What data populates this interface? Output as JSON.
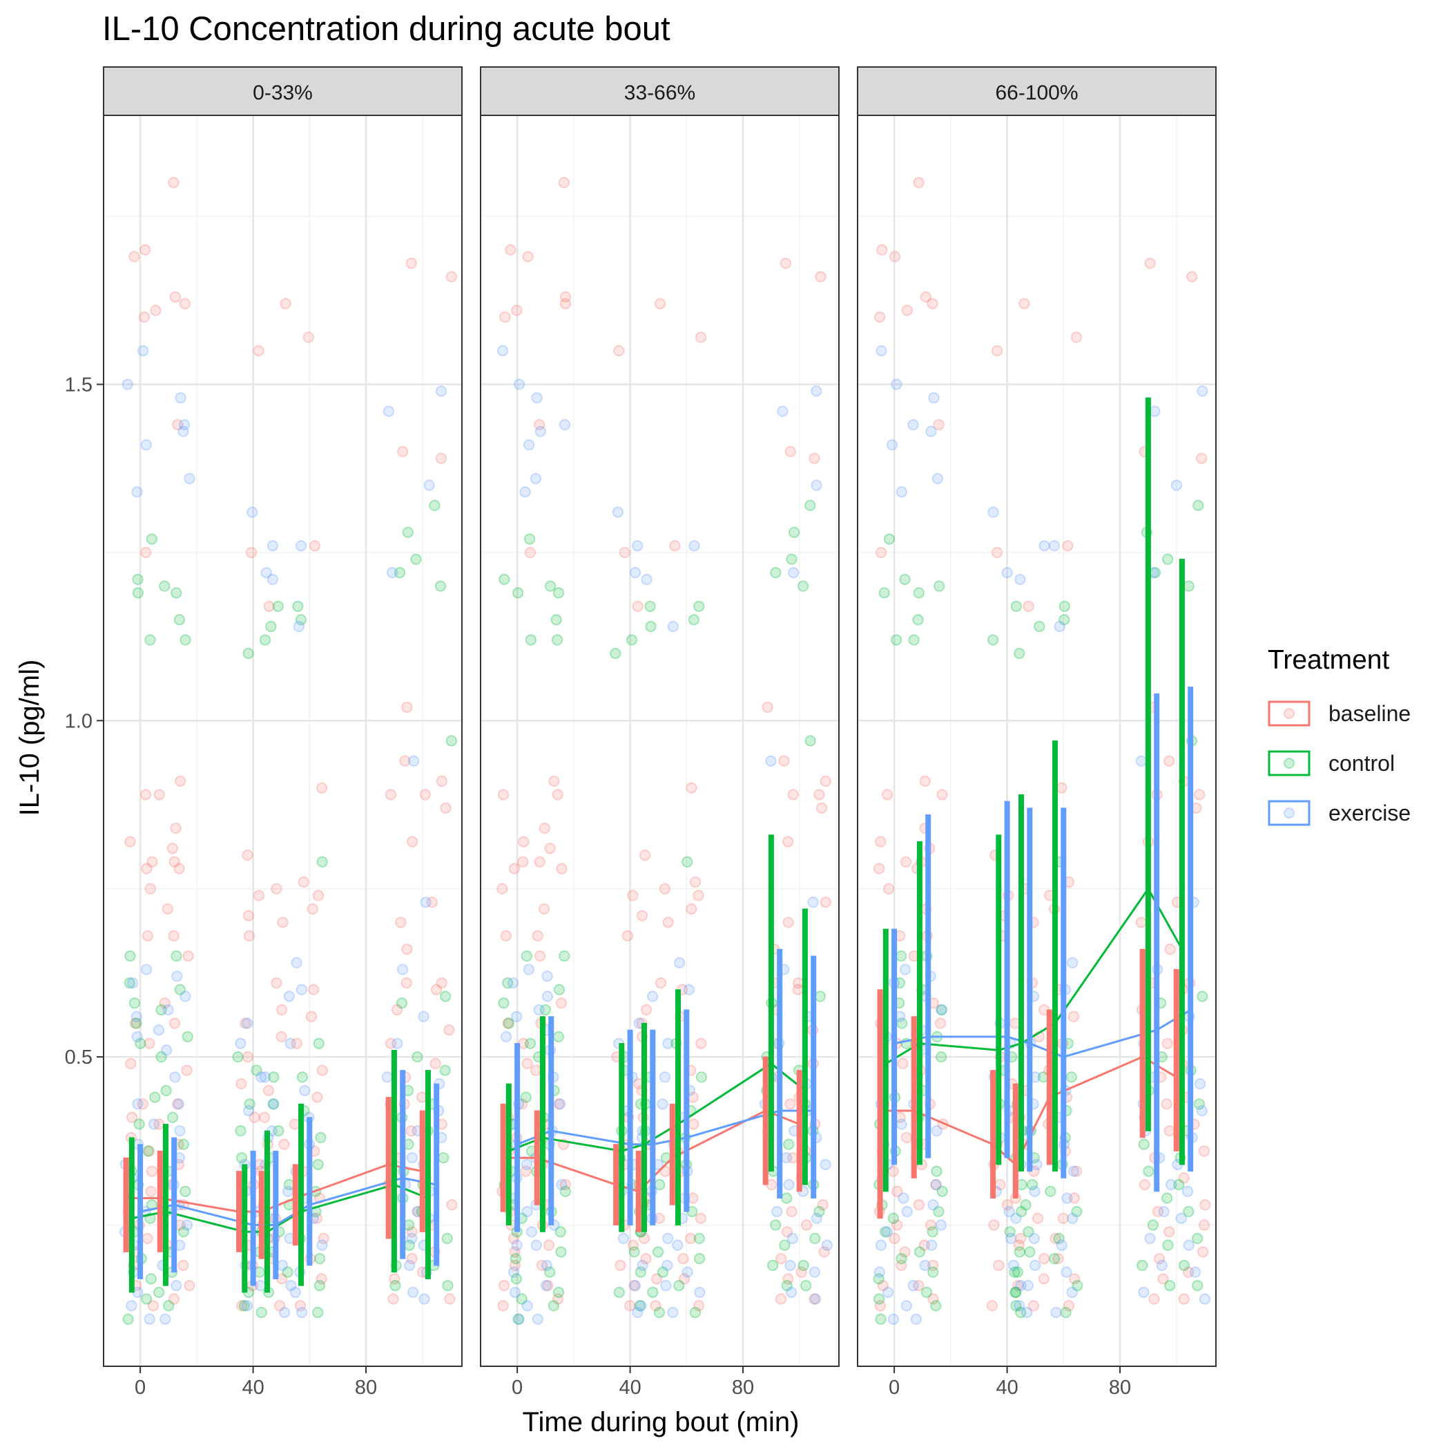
{
  "chart_data": {
    "type": "line",
    "title": "IL-10 Concentration during acute bout",
    "xlabel": "Time during bout (min)",
    "ylabel": "IL-10 (pg/ml)",
    "xlim": [
      -13,
      114
    ],
    "ylim": [
      0.04,
      1.9
    ],
    "x_ticks": [
      0,
      40,
      80
    ],
    "x_tick_labels": [
      "0",
      "40",
      "80"
    ],
    "y_ticks": [
      0.5,
      1.0,
      1.5
    ],
    "y_tick_labels": [
      "0.5",
      "1.0",
      "1.5"
    ],
    "grid": true,
    "legend": {
      "title": "Treatment",
      "position": "right",
      "entries": [
        "baseline",
        "control",
        "exercise"
      ]
    },
    "colors": {
      "baseline": "#F8766D",
      "control": "#00BA38",
      "exercise": "#619CFF"
    },
    "facet_variable_labels": [
      "0-33%",
      "33-66%",
      "66-100%"
    ],
    "time_points": [
      0,
      12,
      40,
      48,
      60,
      93,
      105
    ],
    "dodge_offsets": {
      "baseline": -5,
      "control": -3,
      "exercise": 0
    },
    "panels": [
      {
        "label": "0-33%",
        "series": [
          {
            "name": "baseline",
            "mean": [
              0.29,
              0.29,
              0.27,
              0.27,
              0.29,
              0.34,
              0.33
            ],
            "lower": [
              0.21,
              0.21,
              0.21,
              0.2,
              0.22,
              0.23,
              0.24
            ],
            "upper": [
              0.35,
              0.36,
              0.33,
              0.33,
              0.34,
              0.44,
              0.42
            ]
          },
          {
            "name": "control",
            "mean": [
              0.26,
              0.27,
              0.24,
              0.24,
              0.27,
              0.31,
              0.29
            ],
            "lower": [
              0.15,
              0.16,
              0.15,
              0.15,
              0.16,
              0.18,
              0.17
            ],
            "upper": [
              0.38,
              0.4,
              0.34,
              0.39,
              0.43,
              0.51,
              0.48
            ]
          },
          {
            "name": "exercise",
            "mean": [
              0.27,
              0.28,
              0.25,
              0.25,
              0.28,
              0.32,
              0.31
            ],
            "lower": [
              0.17,
              0.18,
              0.16,
              0.17,
              0.19,
              0.2,
              0.19
            ],
            "upper": [
              0.37,
              0.38,
              0.36,
              0.36,
              0.41,
              0.48,
              0.46
            ]
          }
        ]
      },
      {
        "label": "33-66%",
        "series": [
          {
            "name": "baseline",
            "mean": [
              0.35,
              0.35,
              0.31,
              0.3,
              0.35,
              0.42,
              0.4
            ],
            "lower": [
              0.27,
              0.28,
              0.25,
              0.24,
              0.28,
              0.31,
              0.3
            ],
            "upper": [
              0.43,
              0.42,
              0.37,
              0.36,
              0.43,
              0.5,
              0.48
            ]
          },
          {
            "name": "control",
            "mean": [
              0.36,
              0.38,
              0.36,
              0.37,
              0.4,
              0.49,
              0.45
            ],
            "lower": [
              0.25,
              0.24,
              0.24,
              0.24,
              0.25,
              0.33,
              0.31
            ],
            "upper": [
              0.46,
              0.56,
              0.52,
              0.55,
              0.6,
              0.83,
              0.72
            ]
          },
          {
            "name": "exercise",
            "mean": [
              0.37,
              0.39,
              0.37,
              0.37,
              0.38,
              0.42,
              0.42
            ],
            "lower": [
              0.24,
              0.25,
              0.25,
              0.25,
              0.27,
              0.29,
              0.29
            ],
            "upper": [
              0.52,
              0.56,
              0.54,
              0.54,
              0.57,
              0.66,
              0.65
            ]
          }
        ]
      },
      {
        "label": "66-100%",
        "series": [
          {
            "name": "baseline",
            "mean": [
              0.42,
              0.42,
              0.37,
              0.34,
              0.44,
              0.5,
              0.47
            ],
            "lower": [
              0.26,
              0.32,
              0.29,
              0.29,
              0.34,
              0.38,
              0.36
            ],
            "upper": [
              0.6,
              0.56,
              0.48,
              0.46,
              0.57,
              0.66,
              0.63
            ]
          },
          {
            "name": "control",
            "mean": [
              0.49,
              0.52,
              0.51,
              0.52,
              0.55,
              0.75,
              0.66
            ],
            "lower": [
              0.3,
              0.34,
              0.34,
              0.33,
              0.33,
              0.39,
              0.34
            ],
            "upper": [
              0.69,
              0.82,
              0.83,
              0.89,
              0.97,
              1.48,
              1.24
            ]
          },
          {
            "name": "exercise",
            "mean": [
              0.52,
              0.53,
              0.53,
              0.52,
              0.5,
              0.54,
              0.57
            ],
            "lower": [
              0.34,
              0.35,
              0.35,
              0.33,
              0.32,
              0.3,
              0.33
            ],
            "upper": [
              0.69,
              0.86,
              0.88,
              0.87,
              0.87,
              1.04,
              1.05
            ]
          }
        ]
      }
    ],
    "point_groups": [
      {
        "x": 0,
        "baseline": [
          1.7,
          1.69,
          1.6,
          1.61,
          1.25,
          0.89,
          0.82,
          0.79,
          0.78,
          0.75,
          0.68,
          0.55,
          0.52,
          0.49,
          0.43,
          0.41,
          0.38,
          0.36,
          0.33,
          0.3,
          0.27,
          0.25,
          0.23,
          0.21,
          0.19,
          0.16,
          0.13
        ],
        "control": [
          1.27,
          1.21,
          1.19,
          1.12,
          0.65,
          0.61,
          0.58,
          0.55,
          0.52,
          0.44,
          0.4,
          0.36,
          0.33,
          0.31,
          0.28,
          0.26,
          0.24,
          0.2,
          0.17,
          0.14,
          0.11
        ],
        "exercise": [
          1.55,
          1.5,
          1.41,
          1.34,
          0.63,
          0.61,
          0.56,
          0.53,
          0.43,
          0.4,
          0.37,
          0.34,
          0.32,
          0.29,
          0.27,
          0.24,
          0.22,
          0.18,
          0.15,
          0.13,
          0.11
        ]
      },
      {
        "x": 12,
        "baseline": [
          1.8,
          1.63,
          1.62,
          1.44,
          0.91,
          0.89,
          0.84,
          0.81,
          0.79,
          0.78,
          0.72,
          0.68,
          0.65,
          0.58,
          0.55,
          0.48,
          0.43,
          0.4,
          0.37,
          0.34,
          0.31,
          0.28,
          0.25,
          0.22,
          0.19,
          0.16,
          0.14
        ],
        "control": [
          1.2,
          1.19,
          1.15,
          1.12,
          0.65,
          0.6,
          0.57,
          0.53,
          0.5,
          0.45,
          0.41,
          0.37,
          0.33,
          0.3,
          0.27,
          0.24,
          0.21,
          0.18,
          0.15,
          0.13
        ],
        "exercise": [
          1.48,
          1.44,
          1.43,
          1.36,
          0.62,
          0.59,
          0.57,
          0.54,
          0.51,
          0.47,
          0.43,
          0.39,
          0.35,
          0.31,
          0.28,
          0.25,
          0.22,
          0.19,
          0.16,
          0.11
        ]
      },
      {
        "x": 40,
        "baseline": [
          1.55,
          1.25,
          0.8,
          0.74,
          0.71,
          0.68,
          0.55,
          0.5,
          0.46,
          0.41,
          0.37,
          0.34,
          0.31,
          0.28,
          0.25,
          0.22,
          0.19,
          0.16,
          0.13
        ],
        "control": [
          1.12,
          1.1,
          0.5,
          0.48,
          0.43,
          0.39,
          0.35,
          0.31,
          0.27,
          0.24,
          0.21,
          0.18,
          0.15,
          0.13
        ],
        "exercise": [
          1.31,
          1.22,
          0.55,
          0.52,
          0.47,
          0.42,
          0.38,
          0.34,
          0.3,
          0.27,
          0.23,
          0.19,
          0.16,
          0.13
        ]
      },
      {
        "x": 48,
        "baseline": [
          1.62,
          1.17,
          0.75,
          0.7,
          0.61,
          0.57,
          0.53,
          0.45,
          0.41,
          0.37,
          0.33,
          0.29,
          0.26,
          0.23,
          0.2,
          0.17,
          0.13
        ],
        "control": [
          1.17,
          1.14,
          0.47,
          0.43,
          0.39,
          0.35,
          0.31,
          0.28,
          0.24,
          0.21,
          0.18,
          0.15,
          0.12
        ],
        "exercise": [
          1.26,
          1.21,
          0.59,
          0.52,
          0.47,
          0.43,
          0.39,
          0.34,
          0.3,
          0.26,
          0.23,
          0.19,
          0.16,
          0.12
        ]
      },
      {
        "x": 60,
        "baseline": [
          1.57,
          1.26,
          0.9,
          0.76,
          0.74,
          0.72,
          0.6,
          0.56,
          0.52,
          0.48,
          0.44,
          0.4,
          0.36,
          0.33,
          0.29,
          0.26,
          0.23,
          0.2,
          0.17,
          0.13
        ],
        "control": [
          1.17,
          1.15,
          0.79,
          0.52,
          0.47,
          0.42,
          0.38,
          0.34,
          0.3,
          0.27,
          0.23,
          0.2,
          0.16,
          0.12
        ],
        "exercise": [
          1.26,
          1.14,
          0.64,
          0.6,
          0.45,
          0.41,
          0.37,
          0.33,
          0.29,
          0.26,
          0.22,
          0.18,
          0.15,
          0.12
        ]
      },
      {
        "x": 93,
        "baseline": [
          1.68,
          1.4,
          1.02,
          0.94,
          0.89,
          0.82,
          0.7,
          0.66,
          0.61,
          0.57,
          0.52,
          0.47,
          0.43,
          0.39,
          0.35,
          0.31,
          0.27,
          0.24,
          0.2,
          0.17,
          0.14
        ],
        "control": [
          1.28,
          1.24,
          1.22,
          0.58,
          0.5,
          0.45,
          0.41,
          0.37,
          0.33,
          0.29,
          0.25,
          0.22,
          0.19,
          0.16
        ],
        "exercise": [
          1.46,
          1.22,
          0.94,
          0.63,
          0.52,
          0.47,
          0.43,
          0.39,
          0.35,
          0.31,
          0.27,
          0.23,
          0.19,
          0.15
        ]
      },
      {
        "x": 105,
        "baseline": [
          1.66,
          1.39,
          0.91,
          0.89,
          0.87,
          0.73,
          0.61,
          0.6,
          0.54,
          0.49,
          0.44,
          0.4,
          0.36,
          0.32,
          0.28,
          0.25,
          0.21,
          0.18,
          0.14
        ],
        "control": [
          1.32,
          1.2,
          0.97,
          0.59,
          0.48,
          0.43,
          0.39,
          0.35,
          0.31,
          0.27,
          0.23,
          0.19,
          0.16
        ],
        "exercise": [
          1.49,
          1.35,
          0.73,
          0.56,
          0.46,
          0.42,
          0.38,
          0.34,
          0.3,
          0.26,
          0.22,
          0.18,
          0.14
        ]
      }
    ]
  }
}
